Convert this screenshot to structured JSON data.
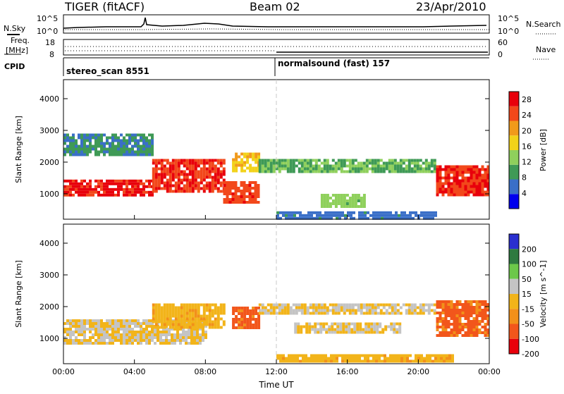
{
  "header": {
    "station": "TIGER (fitACF)",
    "beam": "Beam 02",
    "date": "23/Apr/2010"
  },
  "summary_panels": {
    "nsky_label": "N.Sky",
    "nsky_ticks": [
      "10^5",
      "10^0"
    ],
    "nsearch_label": "N.Search",
    "nsearch_ticks": [
      "10^5",
      "10^0"
    ],
    "freq_label_line1": "Freq.",
    "freq_label_line2": "[MHz]",
    "freq_ticks": [
      "18",
      "8"
    ],
    "nave_label": "Nave",
    "nave_ticks": [
      "60",
      "0"
    ],
    "cpid_label": "CPID",
    "cpid_segments": [
      {
        "name": "stereo_scan 8551",
        "start_hour": 0
      },
      {
        "name": "normalsound (fast) 157",
        "start_hour": 12
      }
    ]
  },
  "chart_data": [
    {
      "type": "heatmap",
      "title": "",
      "xlabel": "Time UT",
      "ylabel": "Slant Range [km]",
      "xlim": [
        0,
        24
      ],
      "ylim": [
        200,
        4600
      ],
      "x_ticks": [
        "00:00",
        "04:00",
        "08:00",
        "12:00",
        "16:00",
        "20:00",
        "00:00"
      ],
      "y_ticks": [
        1000,
        2000,
        3000,
        4000
      ],
      "colorbar": {
        "label": "Power [dB]",
        "ticks": [
          4,
          8,
          12,
          16,
          20,
          24,
          28
        ],
        "range": [
          0,
          30
        ],
        "colors": [
          "#0000ee",
          "#3a6fc8",
          "#3f9a56",
          "#8fd05c",
          "#f2d219",
          "#f19a1b",
          "#f2481b",
          "#e8000b"
        ]
      },
      "regions": [
        {
          "t0": 0,
          "t1": 5,
          "r0": 950,
          "r1": 1450,
          "level": 27
        },
        {
          "t0": 5,
          "t1": 9,
          "r0": 1050,
          "r1": 2100,
          "level": 26
        },
        {
          "t0": 9,
          "t1": 11,
          "r0": 700,
          "r1": 1400,
          "level": 25
        },
        {
          "t0": 9.5,
          "t1": 11,
          "r0": 1700,
          "r1": 2300,
          "level": 18
        },
        {
          "t0": 11,
          "t1": 21,
          "r0": 1700,
          "r1": 2100,
          "level": 11
        },
        {
          "t0": 14.5,
          "t1": 17,
          "r0": 600,
          "r1": 1000,
          "level": 13
        },
        {
          "t0": 12,
          "t1": 21,
          "r0": 200,
          "r1": 450,
          "level": 6
        },
        {
          "t0": 21,
          "t1": 24,
          "r0": 1000,
          "r1": 1900,
          "level": 26
        },
        {
          "t0": 0,
          "t1": 5,
          "r0": 2200,
          "r1": 2900,
          "level": 8
        }
      ]
    },
    {
      "type": "heatmap",
      "title": "",
      "xlabel": "Time UT",
      "ylabel": "Slant Range [km]",
      "xlim": [
        0,
        24
      ],
      "ylim": [
        200,
        4600
      ],
      "x_ticks": [
        "00:00",
        "04:00",
        "08:00",
        "12:00",
        "16:00",
        "20:00",
        "00:00"
      ],
      "y_ticks": [
        1000,
        2000,
        3000,
        4000
      ],
      "colorbar": {
        "label": "Velocity [m s^-1]",
        "ticks": [
          200,
          100,
          50,
          15,
          -15,
          -50,
          -100,
          -200
        ],
        "range": [
          -250,
          250
        ],
        "colors": [
          "#2a2fd0",
          "#2e7a40",
          "#6cc84a",
          "#c4c4c4",
          "#f2b41a",
          "#f2901a",
          "#f2561b",
          "#e8000b"
        ]
      },
      "regions": [
        {
          "t0": 0,
          "t1": 8,
          "r0": 800,
          "r1": 1600,
          "level": 0
        },
        {
          "t0": 5,
          "t1": 9,
          "r0": 1300,
          "r1": 2100,
          "level": -40
        },
        {
          "t0": 9.5,
          "t1": 11,
          "r0": 1300,
          "r1": 2000,
          "level": -150
        },
        {
          "t0": 11,
          "t1": 21,
          "r0": 1800,
          "r1": 2100,
          "level": 0
        },
        {
          "t0": 13,
          "t1": 19,
          "r0": 1200,
          "r1": 1500,
          "level": 0
        },
        {
          "t0": 12,
          "t1": 22,
          "r0": 250,
          "r1": 500,
          "level": -40
        },
        {
          "t0": 21,
          "t1": 24,
          "r0": 1100,
          "r1": 2200,
          "level": -140
        }
      ]
    }
  ]
}
